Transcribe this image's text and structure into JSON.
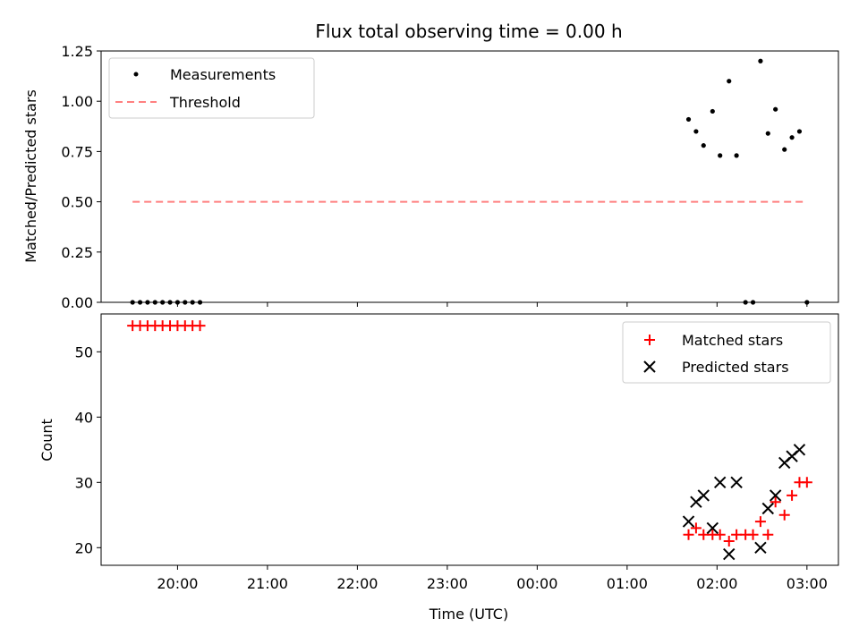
{
  "title": "Flux total observing time = 0.00 h",
  "xlabel": "Time (UTC)",
  "colors": {
    "matched": "#ff0000",
    "predicted": "#000000",
    "threshold": "#ff8080",
    "measurement": "#000000"
  },
  "chart_data": [
    {
      "type": "scatter",
      "ylabel": "Matched/Predicted stars",
      "xlim": [
        "19:09",
        "03:21"
      ],
      "ylim": [
        0,
        1.25
      ],
      "yticks": [
        "0.00",
        "0.25",
        "0.50",
        "0.75",
        "1.00",
        "1.25"
      ],
      "yticks_values": [
        0,
        0.25,
        0.5,
        0.75,
        1.0,
        1.25
      ],
      "grid": false,
      "legend": "top-left",
      "series": [
        {
          "name": "Measurements",
          "marker": "dot",
          "points": [
            [
              "19:30",
              0
            ],
            [
              "19:35",
              0
            ],
            [
              "19:40",
              0
            ],
            [
              "19:45",
              0
            ],
            [
              "19:50",
              0
            ],
            [
              "19:55",
              0
            ],
            [
              "20:00",
              0
            ],
            [
              "20:05",
              0
            ],
            [
              "20:10",
              0
            ],
            [
              "20:15",
              0
            ],
            [
              "01:41",
              0.91
            ],
            [
              "01:46",
              0.85
            ],
            [
              "01:51",
              0.78
            ],
            [
              "01:57",
              0.95
            ],
            [
              "02:02",
              0.73
            ],
            [
              "02:08",
              1.1
            ],
            [
              "02:13",
              0.73
            ],
            [
              "02:19",
              0.0
            ],
            [
              "02:24",
              0.0
            ],
            [
              "02:29",
              1.2
            ],
            [
              "02:34",
              0.84
            ],
            [
              "02:39",
              0.96
            ],
            [
              "02:45",
              0.76
            ],
            [
              "02:50",
              0.82
            ],
            [
              "02:55",
              0.85
            ],
            [
              "03:00",
              0.0
            ]
          ]
        },
        {
          "name": "Threshold",
          "marker": "dashed-line",
          "points": [
            [
              "19:30",
              0.5
            ],
            [
              "03:00",
              0.5
            ]
          ]
        }
      ]
    },
    {
      "type": "scatter",
      "ylabel": "Count",
      "xlim": [
        "19:09",
        "03:21"
      ],
      "ylim": [
        17.3,
        55.8
      ],
      "yticks": [
        "20",
        "30",
        "40",
        "50"
      ],
      "yticks_values": [
        20,
        30,
        40,
        50
      ],
      "xticks": [
        "20:00",
        "21:00",
        "22:00",
        "23:00",
        "00:00",
        "01:00",
        "02:00",
        "03:00"
      ],
      "grid": false,
      "legend": "top-right",
      "series": [
        {
          "name": "Matched stars",
          "marker": "plus",
          "points": [
            [
              "19:30",
              54
            ],
            [
              "19:35",
              54
            ],
            [
              "19:40",
              54
            ],
            [
              "19:45",
              54
            ],
            [
              "19:50",
              54
            ],
            [
              "19:55",
              54
            ],
            [
              "20:00",
              54
            ],
            [
              "20:05",
              54
            ],
            [
              "20:10",
              54
            ],
            [
              "20:15",
              54
            ],
            [
              "01:41",
              22
            ],
            [
              "01:46",
              23
            ],
            [
              "01:51",
              22
            ],
            [
              "01:57",
              22
            ],
            [
              "02:02",
              22
            ],
            [
              "02:08",
              21
            ],
            [
              "02:13",
              22
            ],
            [
              "02:19",
              22
            ],
            [
              "02:24",
              22
            ],
            [
              "02:29",
              24
            ],
            [
              "02:34",
              22
            ],
            [
              "02:39",
              27
            ],
            [
              "02:45",
              25
            ],
            [
              "02:50",
              28
            ],
            [
              "02:55",
              30
            ],
            [
              "03:00",
              30
            ]
          ]
        },
        {
          "name": "Predicted stars",
          "marker": "x",
          "points": [
            [
              "01:41",
              24
            ],
            [
              "01:46",
              27
            ],
            [
              "01:51",
              28
            ],
            [
              "01:57",
              23
            ],
            [
              "02:02",
              30
            ],
            [
              "02:08",
              19
            ],
            [
              "02:13",
              30
            ],
            [
              "02:29",
              20
            ],
            [
              "02:34",
              26
            ],
            [
              "02:39",
              28
            ],
            [
              "02:45",
              33
            ],
            [
              "02:50",
              34
            ],
            [
              "02:55",
              35
            ]
          ]
        }
      ]
    }
  ]
}
